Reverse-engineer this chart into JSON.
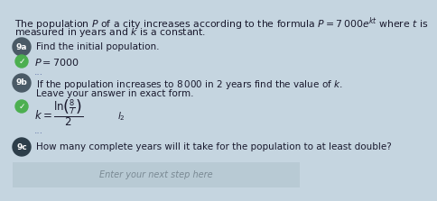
{
  "bg_color": "#c5d5e0",
  "title_line1": "The population $P$ of a city increases according to the formula $P = 7\\,000e^{kt}$ where $t$ is",
  "title_line2": "measured in years and $k$ is a constant.",
  "q9a_label": "9a",
  "q9a_text": "Find the initial population.",
  "q9a_answer": "$P = 7000$",
  "q9b_label": "9b",
  "q9b_line1": "If the population increases to $8\\,000$ in $2$ years find the value of $k$.",
  "q9b_line2": "Leave your answer in exact form.",
  "q9b_answer": "$k = \\dfrac{\\ln\\!\\left(\\frac{8}{7}\\right)}{2}$",
  "q9c_label": "9c",
  "q9c_text": "How many complete years will it take for the population to at least double?",
  "q9c_input": "Enter your next step here",
  "check_color": "#4caf50",
  "label_color_9a": "#4a5a66",
  "label_color_9b": "#4a5a66",
  "label_color_9c": "#2d3e4a",
  "input_box_color": "#b8cad4",
  "text_color": "#1a1a2e",
  "input_text_color": "#7a8a94",
  "title_fs": 7.8,
  "body_fs": 7.5,
  "ans_fs": 8.5,
  "label_fs": 6.5
}
